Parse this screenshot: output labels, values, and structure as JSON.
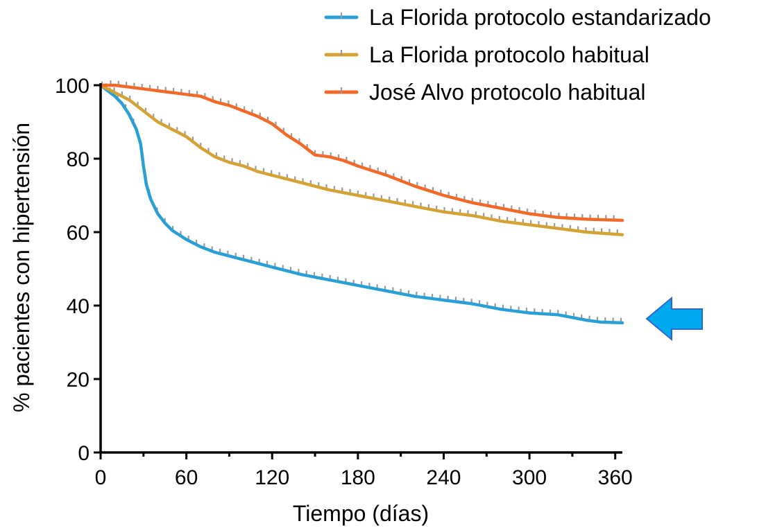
{
  "chart_data": {
    "type": "line",
    "title": "",
    "xlabel": "Tiempo (días)",
    "ylabel": "% pacientes con hipertensión",
    "xlim": [
      0,
      365
    ],
    "ylim": [
      0,
      100
    ],
    "xticks": [
      0,
      60,
      120,
      180,
      240,
      300,
      360
    ],
    "yticks": [
      0,
      20,
      40,
      60,
      80,
      100
    ],
    "grid": false,
    "legend_position": "top-right",
    "censor_mark_color": "#9a9a9a",
    "series": [
      {
        "name": "La Florida protocolo estandarizado",
        "color": "#2a9fd6",
        "x": [
          0,
          5,
          10,
          15,
          20,
          25,
          28,
          30,
          32,
          35,
          40,
          45,
          50,
          60,
          70,
          80,
          90,
          100,
          110,
          120,
          140,
          160,
          180,
          200,
          220,
          240,
          260,
          280,
          300,
          320,
          340,
          350,
          365
        ],
        "y": [
          100,
          98.5,
          97,
          95,
          92,
          88,
          84,
          78,
          73,
          69,
          65,
          62.5,
          60.5,
          58,
          56,
          54.5,
          53.5,
          52.5,
          51.5,
          50.5,
          48.5,
          47,
          45.5,
          44,
          42.5,
          41.5,
          40.5,
          39,
          38,
          37.5,
          36,
          35.5,
          35.3
        ]
      },
      {
        "name": "La Florida protocolo habitual",
        "color": "#d4a336",
        "x": [
          0,
          10,
          20,
          30,
          40,
          50,
          60,
          70,
          80,
          90,
          100,
          110,
          120,
          140,
          160,
          180,
          200,
          220,
          240,
          260,
          280,
          300,
          320,
          340,
          365
        ],
        "y": [
          100,
          98,
          96,
          93,
          90,
          88,
          86,
          83,
          80.5,
          79,
          78,
          76.5,
          75.5,
          73.5,
          71.5,
          70,
          68.5,
          67,
          65.5,
          64.5,
          63,
          62,
          61,
          60,
          59.3
        ]
      },
      {
        "name": "José Alvo protocolo habitual",
        "color": "#f26a2a",
        "x": [
          0,
          10,
          20,
          30,
          40,
          50,
          60,
          70,
          80,
          90,
          100,
          110,
          120,
          130,
          140,
          150,
          160,
          170,
          180,
          200,
          220,
          240,
          260,
          280,
          300,
          320,
          340,
          365
        ],
        "y": [
          100,
          100,
          99.5,
          99,
          98.5,
          98,
          97.5,
          97,
          95.5,
          94.5,
          93,
          91.5,
          89.5,
          86.5,
          84,
          81,
          80.5,
          79.5,
          78,
          75.5,
          72.5,
          70,
          68,
          66.5,
          65,
          64,
          63.5,
          63.2
        ]
      }
    ]
  },
  "annotation": {
    "arrow_color": "#00aaee",
    "arrow_outline": "#3366cc",
    "arrow_points_at_value": 35.3
  }
}
